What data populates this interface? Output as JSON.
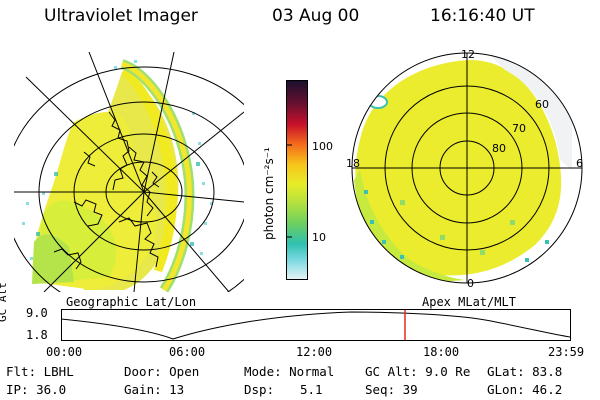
{
  "header": {
    "instrument": "Ultraviolet Imager",
    "date": "03 Aug 00",
    "time": "16:16:40 UT"
  },
  "left_panel": {
    "caption": "Geographic Lat/Lon"
  },
  "right_panel": {
    "caption": "Apex MLat/MLT",
    "mlt_labels": {
      "top": "12",
      "left": "18",
      "right": "6",
      "bottom": "0"
    },
    "lat_labels": [
      "60",
      "70",
      "80"
    ]
  },
  "colorbar": {
    "unit_label": "photon cm⁻²s⁻¹",
    "ticks": [
      "100",
      "10"
    ]
  },
  "timeline": {
    "ylabel": "GC Alt",
    "ytick_top": "9.0",
    "ytick_bottom": "1.8",
    "xticks": [
      "00:00",
      "06:00",
      "12:00",
      "18:00",
      "23:59"
    ],
    "current_marker_color": "#e8281e"
  },
  "info": {
    "flt": "Flt: LBHL",
    "door": "Door: Open",
    "mode": "Mode: Normal",
    "gc_alt": "GC Alt: 9.0 Re",
    "glat": "GLat: 83.8",
    "ip": "IP: 36.0",
    "gain": "Gain: 13",
    "dsp_label": "Dsp:",
    "dsp_value": "5.1",
    "seq": "Seq: 39",
    "glon": "GLon: 46.2"
  }
}
